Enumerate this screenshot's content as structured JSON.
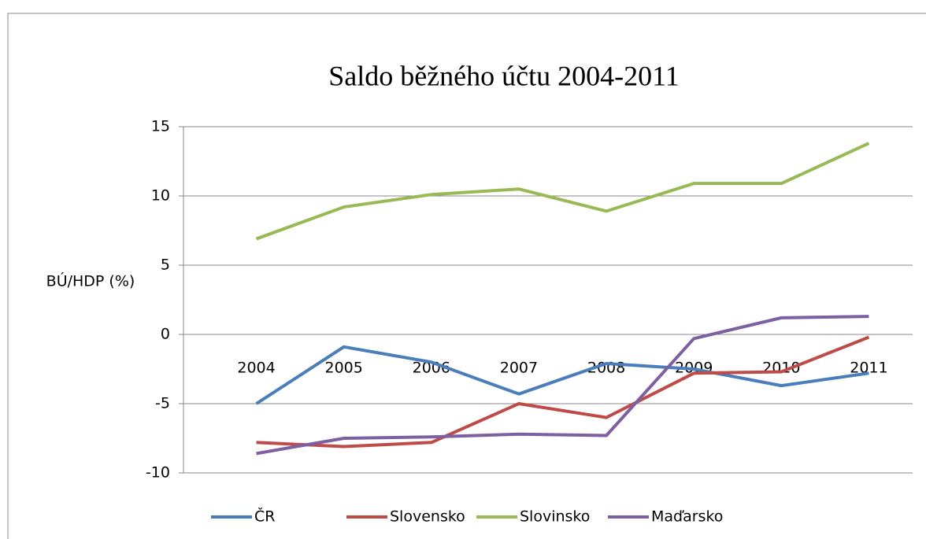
{
  "chart_data": {
    "type": "line",
    "title": "Saldo běžného účtu 2004-2011",
    "y_label": "BÚ/HDP (%)",
    "categories": [
      "2004",
      "2005",
      "2006",
      "2007",
      "2008",
      "2009",
      "2010",
      "2011"
    ],
    "series": [
      {
        "name": "ČR",
        "color": "#4a7ebb",
        "values": [
          -5.0,
          -0.9,
          -2.0,
          -4.3,
          -2.1,
          -2.5,
          -3.7,
          -2.8
        ]
      },
      {
        "name": "Slovensko",
        "color": "#be4b48",
        "values": [
          -7.8,
          -8.1,
          -7.8,
          -5.0,
          -6.0,
          -2.8,
          -2.7,
          -0.2
        ]
      },
      {
        "name": "Slovinsko",
        "color": "#98b954",
        "values": [
          6.9,
          9.2,
          10.1,
          10.5,
          8.9,
          10.9,
          10.9,
          13.8
        ]
      },
      {
        "name": "Maďarsko",
        "color": "#7d60a0",
        "values": [
          -8.6,
          -7.5,
          -7.4,
          -7.2,
          -7.3,
          -0.3,
          1.2,
          1.3
        ]
      }
    ],
    "ylim": [
      -10,
      15
    ],
    "yticks": [
      -10,
      -5,
      0,
      5,
      10,
      15
    ],
    "grid": true,
    "legend": "bottom"
  }
}
